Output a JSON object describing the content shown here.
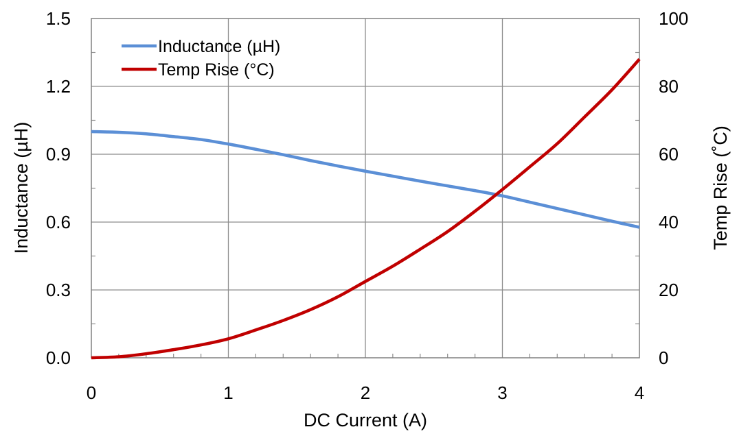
{
  "chart_data": {
    "type": "line",
    "title": "",
    "xlabel": "DC Current (A)",
    "ylabel_left": "Inductance (µH)",
    "ylabel_right": "Temp Rise (˚C)",
    "xlim": [
      0,
      4
    ],
    "ylim_left": [
      0,
      1.5
    ],
    "ylim_right": [
      0,
      100
    ],
    "x_ticks": [
      "0",
      "1",
      "2",
      "3",
      "4"
    ],
    "y_left_ticks": [
      "0.0",
      "0.3",
      "0.6",
      "0.9",
      "1.2",
      "1.5"
    ],
    "y_right_ticks": [
      "0",
      "20",
      "40",
      "60",
      "80",
      "100"
    ],
    "grid": true,
    "legend_position": "top-left",
    "series": [
      {
        "name": "Inductance (µH)",
        "axis": "left",
        "color": "#5b8fd6",
        "x": [
          0,
          0.2,
          0.4,
          0.6,
          0.8,
          1.0,
          1.2,
          1.4,
          1.6,
          1.8,
          2.0,
          2.2,
          2.4,
          2.6,
          2.8,
          3.0,
          3.2,
          3.4,
          3.6,
          3.8,
          4.0
        ],
        "y": [
          1.0,
          0.997,
          0.99,
          0.978,
          0.965,
          0.945,
          0.922,
          0.898,
          0.872,
          0.848,
          0.825,
          0.803,
          0.781,
          0.76,
          0.739,
          0.716,
          0.688,
          0.66,
          0.632,
          0.604,
          0.577
        ]
      },
      {
        "name": "Temp Rise (°C)",
        "axis": "right",
        "color": "#c00000",
        "x": [
          0,
          0.2,
          0.4,
          0.6,
          0.8,
          1.0,
          1.2,
          1.4,
          1.6,
          1.8,
          2.0,
          2.2,
          2.4,
          2.6,
          2.8,
          3.0,
          3.2,
          3.4,
          3.6,
          3.8,
          4.0
        ],
        "y": [
          0,
          0.3,
          1.2,
          2.4,
          3.8,
          5.6,
          8.2,
          11.0,
          14.2,
          18.0,
          22.5,
          27.0,
          32.0,
          37.2,
          43.2,
          49.6,
          56.3,
          63.1,
          71.0,
          79.0,
          88.0
        ]
      }
    ]
  }
}
